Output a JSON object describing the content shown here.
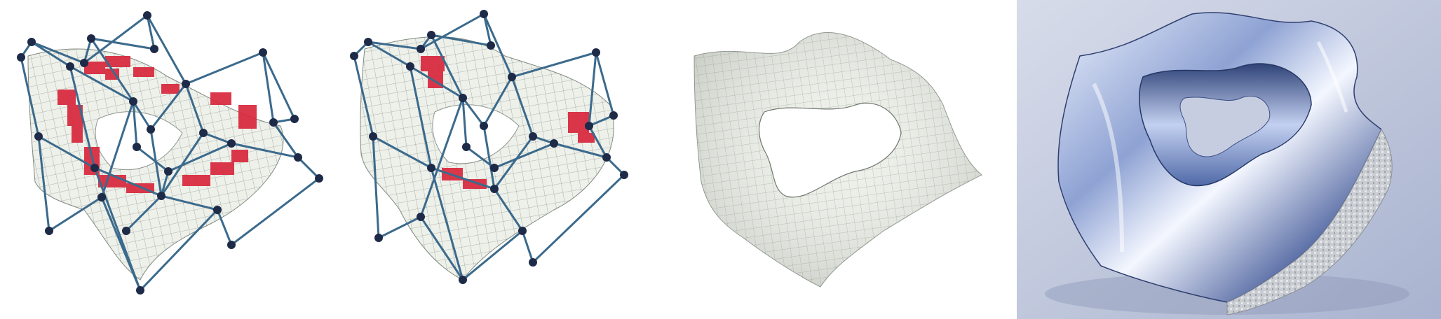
{
  "figure": {
    "panels": [
      {
        "id": "control-net-refined",
        "stage": 1
      },
      {
        "id": "control-net-partial",
        "stage": 2
      },
      {
        "id": "smooth-surface",
        "stage": 3
      },
      {
        "id": "rendered-solid",
        "stage": 4
      }
    ],
    "colors": {
      "background": "#ffffff",
      "control_line": "#3b6a8c",
      "control_vertex": "#1d2a48",
      "surface_fill": "#eef0ea",
      "grid_line": "#9aa39a",
      "highlight_patch": "#d8283c",
      "render_backdrop": "#b9c2db",
      "metal_light": "#e8eefb",
      "metal_dark": "#3a4f87",
      "rough_cut": "#c9cdd2"
    }
  }
}
